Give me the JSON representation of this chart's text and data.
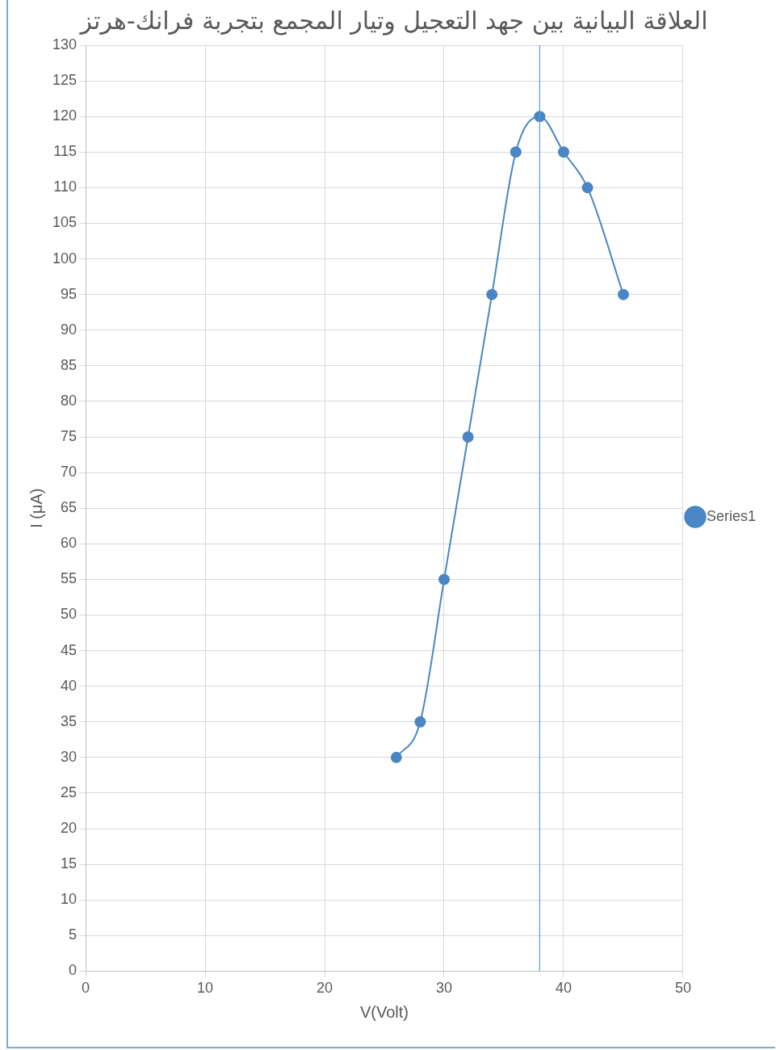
{
  "chart_data": {
    "type": "line",
    "title": "العلاقة البيانية بين جهد التعجيل وتيار المجمع بتجربة فرانك-هرتز",
    "xlabel": "V(Volt)",
    "ylabel": "I (μA)",
    "x": [
      26,
      28,
      30,
      32,
      34,
      36,
      38,
      40,
      42,
      45
    ],
    "series": [
      {
        "name": "Series1",
        "color": "#4a86c5",
        "values": [
          30,
          35,
          55,
          75,
          95,
          115,
          120,
          115,
          110,
          95
        ]
      }
    ],
    "xlim": [
      0,
      50
    ],
    "xticks": [
      0,
      10,
      20,
      30,
      40,
      50
    ],
    "ylim": [
      0,
      130
    ],
    "yticks": [
      0,
      5,
      10,
      15,
      20,
      25,
      30,
      35,
      40,
      45,
      50,
      55,
      60,
      65,
      70,
      75,
      80,
      85,
      90,
      95,
      100,
      105,
      110,
      115,
      120,
      125,
      130
    ],
    "ref_lines": [
      {
        "axis": "x",
        "value": 38,
        "color": "#5b9bd5"
      }
    ],
    "grid": true,
    "legend": "right",
    "marker": "circle",
    "line_style": "solid"
  }
}
